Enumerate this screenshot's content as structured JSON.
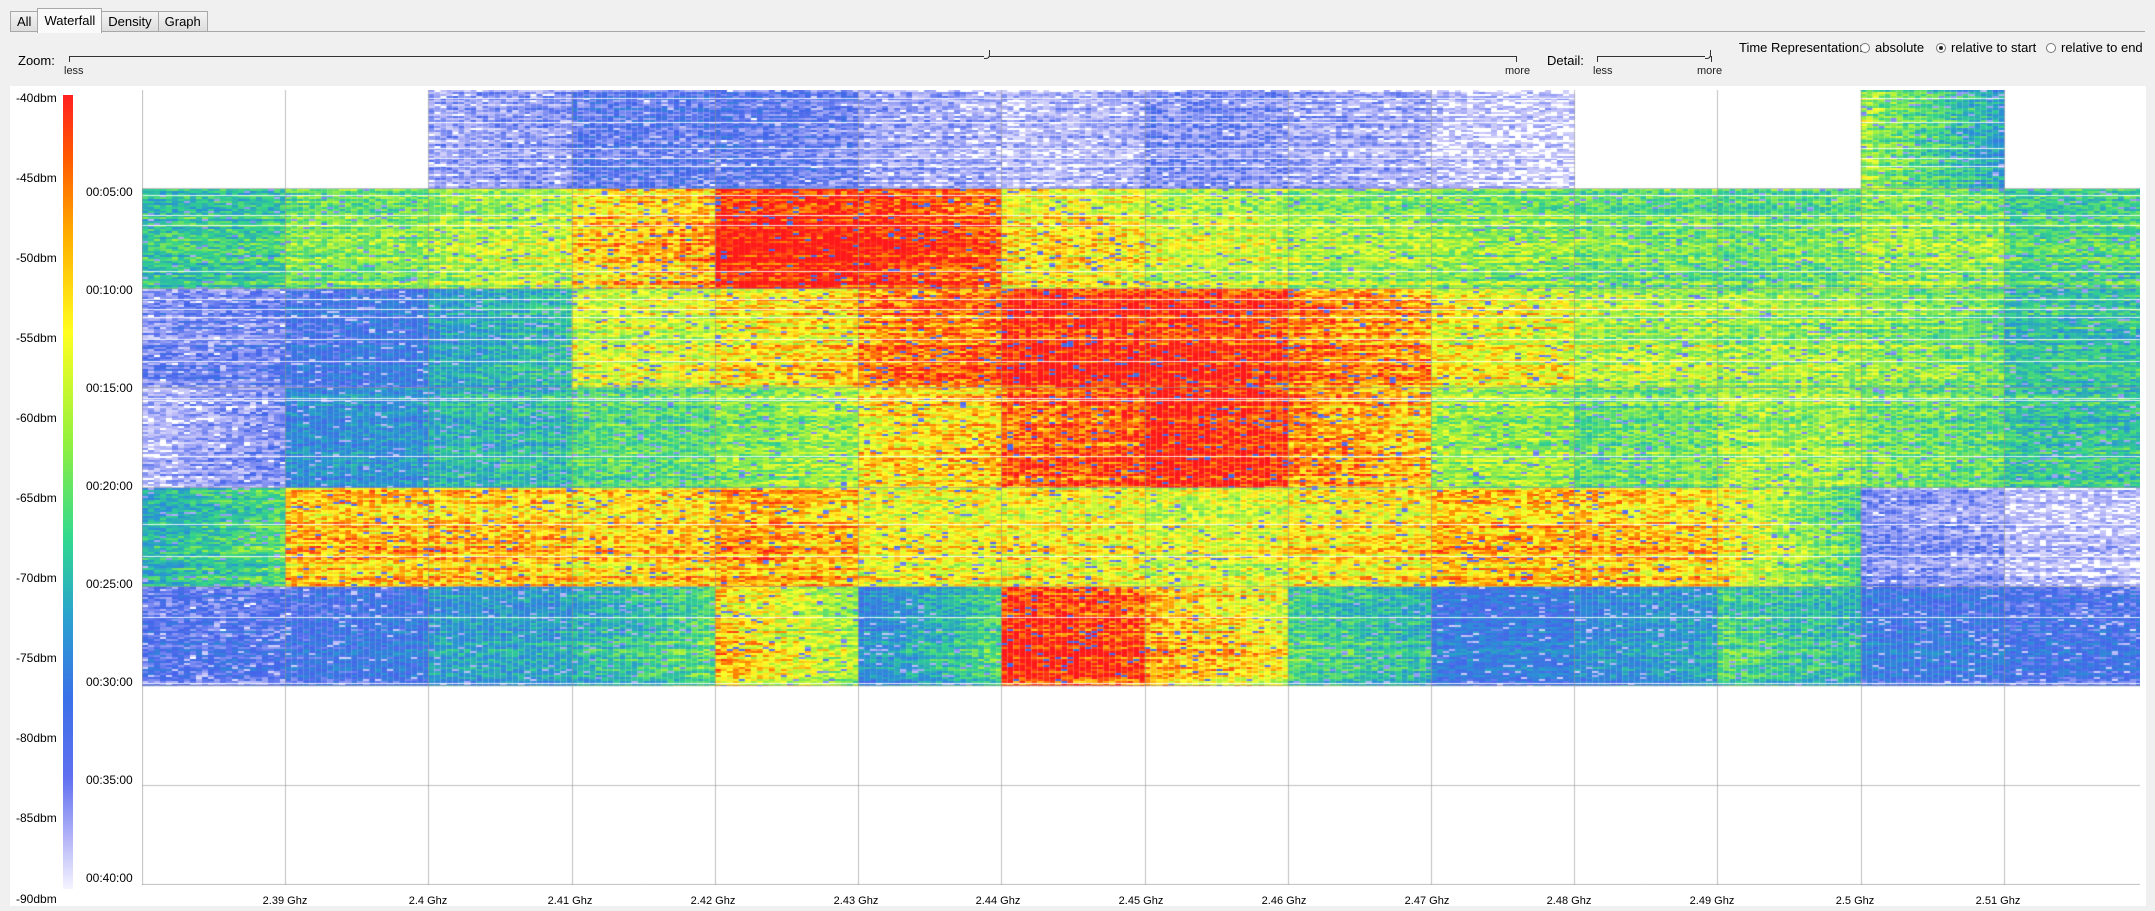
{
  "tabs": [
    {
      "label": "All",
      "active": false
    },
    {
      "label": "Waterfall",
      "active": true
    },
    {
      "label": "Density",
      "active": false
    },
    {
      "label": "Graph",
      "active": false
    }
  ],
  "controls": {
    "zoom_label": "Zoom:",
    "zoom_less": "less",
    "zoom_more": "more",
    "detail_label": "Detail:",
    "detail_less": "less",
    "detail_more": "more",
    "time_rep_label": "Time Representation:",
    "time_options": [
      {
        "label": "absolute",
        "selected": false
      },
      {
        "label": "relative to start",
        "selected": true
      },
      {
        "label": "relative to end",
        "selected": false
      }
    ]
  },
  "legend": {
    "dbm_labels": [
      "-40dbm",
      "-45dbm",
      "-50dbm",
      "-55dbm",
      "-60dbm",
      "-65dbm",
      "-70dbm",
      "-75dbm",
      "-80dbm",
      "-85dbm",
      "-90dbm"
    ]
  },
  "time_labels": [
    "00:05:00",
    "00:10:00",
    "00:15:00",
    "00:20:00",
    "00:25:00",
    "00:30:00",
    "00:35:00",
    "00:40:00"
  ],
  "freq_labels": [
    "2.39 Ghz",
    "2.4 Ghz",
    "2.41 Ghz",
    "2.42 Ghz",
    "2.43 Ghz",
    "2.44 Ghz",
    "2.45 Ghz",
    "2.46 Ghz",
    "2.47 Ghz",
    "2.48 Ghz",
    "2.49 Ghz",
    "2.5 Ghz",
    "2.51 Ghz"
  ],
  "waterfall": {
    "freq_min": 2.38,
    "freq_max": 2.5195,
    "time_max_minutes": 40,
    "segment_minutes": 5,
    "segments": [
      {
        "bands": [
          0,
          0,
          0.15,
          0.25,
          0.25,
          0.15,
          0.1,
          0.2,
          0.15,
          0.1,
          0,
          0,
          0.7,
          0
        ]
      },
      {
        "bands": [
          0.55,
          0.65,
          0.7,
          0.82,
          1.0,
          1.0,
          0.82,
          0.75,
          0.7,
          0.68,
          0.65,
          0.62,
          0.7,
          0.6
        ]
      },
      {
        "bands": [
          0.2,
          0.3,
          0.45,
          0.75,
          0.8,
          0.9,
          1.0,
          1.0,
          0.92,
          0.8,
          0.72,
          0.7,
          0.68,
          0.55
        ]
      },
      {
        "bands": [
          0.1,
          0.4,
          0.5,
          0.6,
          0.65,
          0.8,
          0.92,
          1.0,
          0.9,
          0.7,
          0.62,
          0.7,
          0.65,
          0.55
        ]
      },
      {
        "bands": [
          0.5,
          0.85,
          0.85,
          0.82,
          0.88,
          0.78,
          0.8,
          0.75,
          0.8,
          0.85,
          0.85,
          0.8,
          0.2,
          0.1
        ]
      },
      {
        "bands": [
          0.25,
          0.3,
          0.45,
          0.5,
          0.85,
          0.4,
          1.0,
          0.88,
          0.6,
          0.35,
          0.4,
          0.6,
          0.35,
          0.3
        ]
      },
      {
        "bands": [
          0,
          0,
          0,
          0,
          0,
          0,
          0,
          0,
          0,
          0,
          0,
          0,
          0,
          0
        ]
      },
      {
        "bands": [
          0,
          0,
          0,
          0,
          0,
          0,
          0,
          0,
          0,
          0,
          0,
          0,
          0,
          0
        ]
      }
    ]
  }
}
